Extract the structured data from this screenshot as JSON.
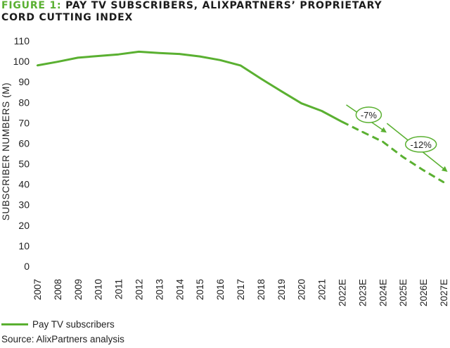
{
  "header": {
    "title_prefix": "FIGURE 1:",
    "title_line1": "PAY TV SUBSCRIBERS, ALIXPARTNERS’ PROPRIETARY",
    "title_line2": "CORD CUTTING INDEX"
  },
  "legend": {
    "label": "Pay TV subscribers"
  },
  "footer": {
    "source": "Source: AlixPartners analysis"
  },
  "colors": {
    "series": "#5ab031",
    "text": "#1c1c1c"
  },
  "chart_data": {
    "type": "line",
    "title": "PAY TV SUBSCRIBERS, ALIXPARTNERS’ PROPRIETARY CORD CUTTING INDEX",
    "xlabel": "",
    "ylabel": "SUBSCRIBER NUMBERS (M)",
    "ylim": [
      0,
      110
    ],
    "yticks": [
      0,
      10,
      20,
      30,
      40,
      50,
      60,
      70,
      80,
      90,
      100,
      110
    ],
    "grid": false,
    "categories": [
      "2007",
      "2008",
      "2009",
      "2010",
      "2011",
      "2012",
      "2013",
      "2014",
      "2015",
      "2016",
      "2017",
      "2018",
      "2019",
      "2020",
      "2021",
      "2022E",
      "2023E",
      "2024E",
      "2025E",
      "2026E",
      "2027E"
    ],
    "series": [
      {
        "name": "Pay TV subscribers",
        "values": [
          98,
          99.8,
          101.8,
          102.6,
          103.4,
          104.7,
          104.1,
          103.6,
          102.4,
          100.6,
          98.0,
          91.6,
          85.5,
          79.5,
          75.8,
          70.5,
          65.6,
          60.8,
          53.3,
          46.9,
          41.0
        ],
        "projected_from_index": 15
      }
    ],
    "annotations": [
      {
        "text": "-7%",
        "from": "2022E",
        "to": "2024E"
      },
      {
        "text": "-12%",
        "from": "2024E",
        "to": "2027E"
      }
    ]
  }
}
